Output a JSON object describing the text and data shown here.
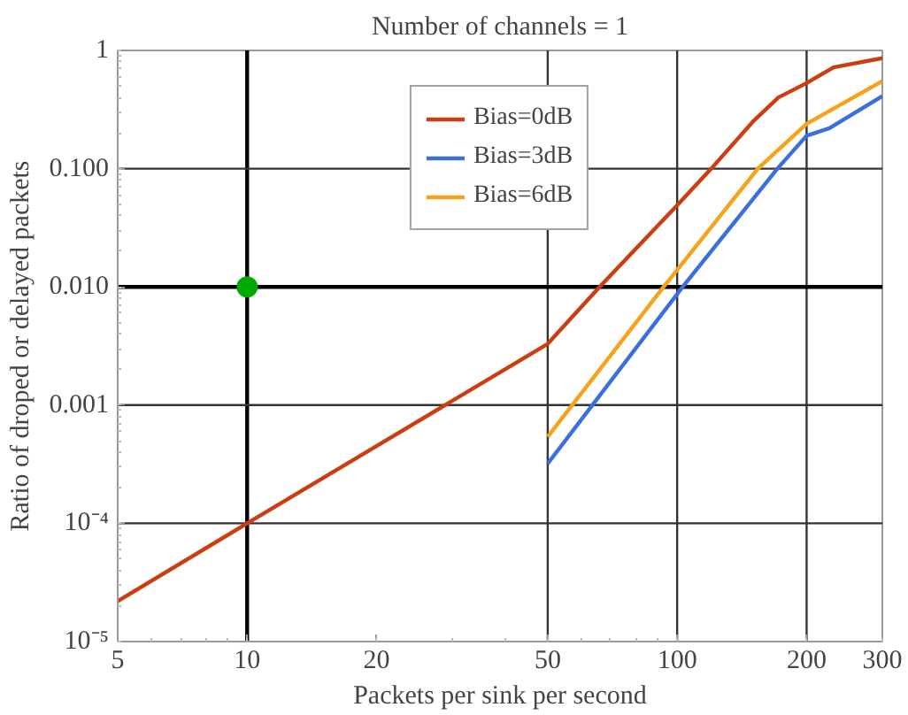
{
  "chart_data": {
    "type": "line",
    "title": "Number of channels = 1",
    "xlabel": "Packets per sink per second",
    "ylabel": "Ratio of droped or delayed packets",
    "log": "xy",
    "xlim": [
      5,
      300
    ],
    "ylim": [
      1e-05,
      1
    ],
    "xticks": [
      5,
      10,
      20,
      50,
      100,
      200,
      300
    ],
    "yticks": [
      {
        "value": 1e-05,
        "label": "10⁻⁵"
      },
      {
        "value": 0.0001,
        "label": "10⁻⁴"
      },
      {
        "value": 0.001,
        "label": "0.001"
      },
      {
        "value": 0.01,
        "label": "0.010"
      },
      {
        "value": 0.1,
        "label": "0.100"
      },
      1
    ],
    "legend": "top",
    "line_style": "solid",
    "ref_lines": [
      {
        "axis": "x",
        "value": 10,
        "color": "#000000"
      },
      {
        "axis": "x",
        "value": 50,
        "color": "#333333"
      },
      {
        "axis": "x",
        "value": 100,
        "color": "#333333"
      },
      {
        "axis": "x",
        "value": 200,
        "color": "#333333"
      },
      {
        "axis": "y",
        "value": 0.1,
        "color": "#333333"
      },
      {
        "axis": "y",
        "value": 0.01,
        "color": "#000000"
      },
      {
        "axis": "y",
        "value": 0.001,
        "color": "#333333"
      },
      {
        "axis": "y",
        "value": 0.0001,
        "color": "#333333"
      }
    ],
    "series": [
      {
        "name": "Bias=0dB",
        "color": "#cc3d12",
        "x": [
          5,
          10,
          50,
          66,
          100,
          120,
          150,
          172,
          200,
          231,
          300
        ],
        "values": [
          2.2e-05,
          0.0001,
          0.0033,
          0.01,
          0.049,
          0.1,
          0.25,
          0.4,
          0.53,
          0.72,
          0.86
        ]
      },
      {
        "name": "Bias=3dB",
        "color": "#3a6fde",
        "x": [
          50,
          103,
          171,
          200,
          226,
          300
        ],
        "values": [
          0.00032,
          0.01,
          0.1,
          0.19,
          0.22,
          0.41
        ]
      },
      {
        "name": "Bias=6dB",
        "color": "#f7a21b",
        "x": [
          50,
          93,
          154,
          200,
          300
        ],
        "values": [
          0.00054,
          0.01,
          0.1,
          0.24,
          0.55
        ]
      },
      {
        "type": "scatter",
        "marker": "circle",
        "color": "#00aa00",
        "x": [
          10
        ],
        "values": [
          0.01
        ]
      }
    ]
  }
}
